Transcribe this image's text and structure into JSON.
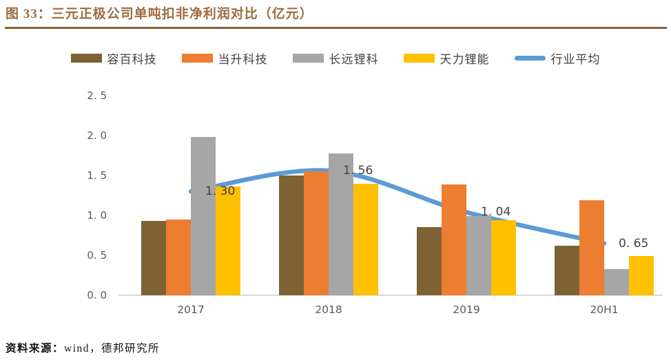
{
  "title": "图 33：三元正极公司单吨扣非净利润对比（亿元）",
  "source": {
    "label": "资料来源：",
    "text": "wind，德邦研究所"
  },
  "colors": {
    "title_text": "#9c6b3f",
    "title_rule": "#8a6137",
    "axis_text": "#595959",
    "data_label_text": "#404040",
    "baseline": "#d9d9d9"
  },
  "chart_data": {
    "type": "bar",
    "subtype": "grouped bars with smoothed line overlay",
    "title": "三元正极公司单吨扣非净利润对比（亿元）",
    "categories": [
      "2017",
      "2018",
      "2019",
      "20H1"
    ],
    "series": [
      {
        "name": "容百科技",
        "type": "bar",
        "color": "#7e6234",
        "values": [
          0.93,
          1.5,
          0.85,
          0.62
        ]
      },
      {
        "name": "当升科技",
        "type": "bar",
        "color": "#ed7d31",
        "values": [
          0.95,
          1.55,
          1.39,
          1.19
        ]
      },
      {
        "name": "长远锂科",
        "type": "bar",
        "color": "#a6a6a6",
        "values": [
          1.98,
          1.78,
          0.99,
          0.33
        ]
      },
      {
        "name": "天力锂能",
        "type": "bar",
        "color": "#ffc000",
        "values": [
          1.36,
          1.4,
          0.94,
          0.49
        ]
      },
      {
        "name": "行业平均",
        "type": "line",
        "color": "#5b9bd5",
        "values": [
          1.3,
          1.56,
          1.04,
          0.65
        ],
        "point_labels": [
          "1. 30",
          "1. 56",
          "1. 04",
          "0. 65"
        ]
      }
    ],
    "ylim": [
      0,
      2.5
    ],
    "yticks": [
      0,
      0.5,
      1.0,
      1.5,
      2.0,
      2.5
    ],
    "ytick_labels": [
      "0. 0",
      "0. 5",
      "1. 0",
      "1. 5",
      "2. 0",
      "2. 5"
    ],
    "xlabel": "",
    "ylabel": "",
    "grid": false,
    "legend_position": "top"
  }
}
